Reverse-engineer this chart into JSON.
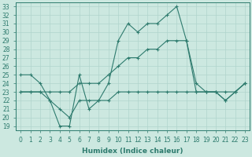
{
  "xlabel": "Humidex (Indice chaleur)",
  "xlim": [
    -0.5,
    23.5
  ],
  "ylim": [
    18.5,
    33.5
  ],
  "xticks": [
    0,
    1,
    2,
    3,
    4,
    5,
    6,
    7,
    8,
    9,
    10,
    11,
    12,
    13,
    14,
    15,
    16,
    17,
    18,
    19,
    20,
    21,
    22,
    23
  ],
  "yticks": [
    19,
    20,
    21,
    22,
    23,
    24,
    25,
    26,
    27,
    28,
    29,
    30,
    31,
    32,
    33
  ],
  "bg_color": "#cce8e0",
  "line_color": "#2e7b6e",
  "grid_color": "#b0d4cc",
  "lines": [
    {
      "x": [
        0,
        1,
        2,
        3,
        4,
        5,
        6,
        7,
        8,
        9,
        10,
        11,
        12,
        13,
        14,
        15,
        16,
        17,
        18,
        19,
        20,
        21,
        22,
        23
      ],
      "y": [
        25,
        25,
        24,
        22,
        19,
        19,
        25,
        21,
        22,
        24,
        29,
        31,
        30,
        31,
        31,
        32,
        33,
        29,
        24,
        23,
        23,
        22,
        23,
        24
      ]
    },
    {
      "x": [
        0,
        1,
        2,
        3,
        4,
        5,
        6,
        7,
        8,
        9,
        10,
        11,
        12,
        13,
        14,
        15,
        16,
        17,
        18,
        19,
        20,
        21,
        22,
        23
      ],
      "y": [
        23,
        23,
        23,
        23,
        23,
        23,
        24,
        24,
        24,
        25,
        26,
        27,
        27,
        28,
        28,
        29,
        29,
        29,
        23,
        23,
        23,
        23,
        23,
        24
      ]
    },
    {
      "x": [
        0,
        1,
        2,
        3,
        4,
        5,
        6,
        7,
        8,
        9,
        10,
        11,
        12,
        13,
        14,
        15,
        16,
        17,
        18,
        19,
        20,
        21,
        22,
        23
      ],
      "y": [
        23,
        23,
        23,
        22,
        21,
        20,
        22,
        22,
        22,
        22,
        23,
        23,
        23,
        23,
        23,
        23,
        23,
        23,
        23,
        23,
        23,
        22,
        23,
        24
      ]
    }
  ],
  "marker": "+",
  "markersize": 3,
  "linewidth": 0.8,
  "fontsize_ticks": 5.5,
  "fontsize_label": 6.5
}
